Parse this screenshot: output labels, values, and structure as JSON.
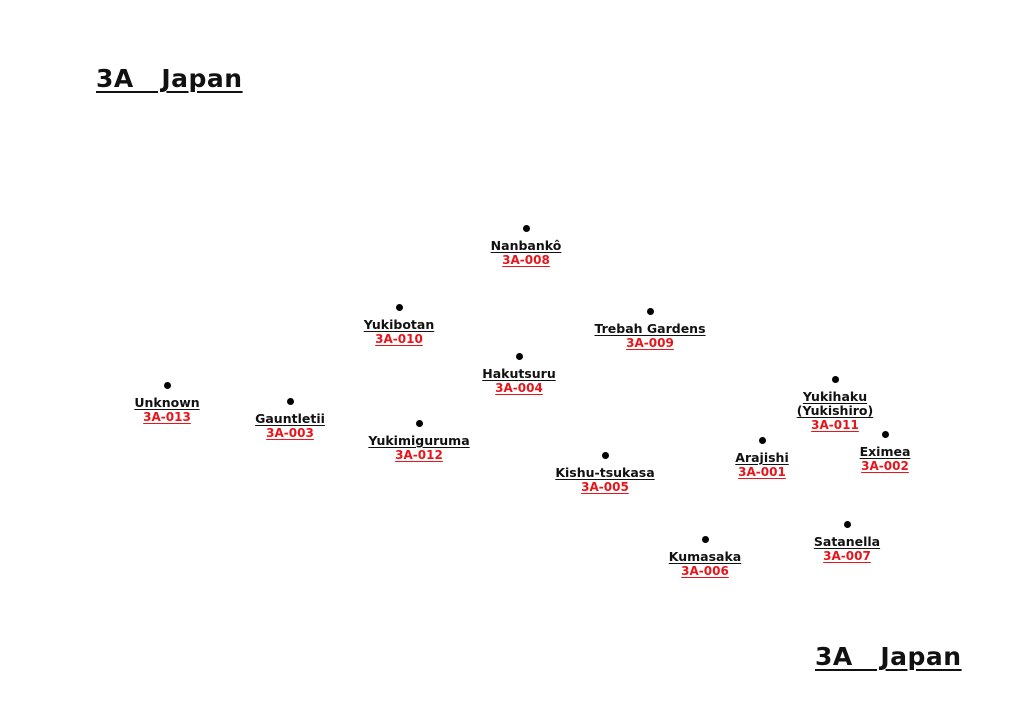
{
  "heading_top": "3A   Japan",
  "heading_bottom": "3A   Japan",
  "code_color": "#e8151b",
  "dot_color": "#000000",
  "nodes": [
    {
      "name": "Nanbankô",
      "code": "3A-008"
    },
    {
      "name": "Yukibotan",
      "code": "3A-010"
    },
    {
      "name": "Trebah Gardens",
      "code": "3A-009"
    },
    {
      "name": "Hakutsuru",
      "code": "3A-004"
    },
    {
      "name": "Unknown",
      "code": "3A-013"
    },
    {
      "name": "Gauntletii",
      "code": "3A-003"
    },
    {
      "name": "Yukimiguruma",
      "code": "3A-012"
    },
    {
      "name": "Yukihaku\n(Yukishiro)",
      "code": "3A-011"
    },
    {
      "name": "Eximea",
      "code": "3A-002"
    },
    {
      "name": "Arajishi",
      "code": "3A-001"
    },
    {
      "name": "Kishu-tsukasa",
      "code": "3A-005"
    },
    {
      "name": "Satanella",
      "code": "3A-007"
    },
    {
      "name": "Kumasaka",
      "code": "3A-006"
    }
  ]
}
